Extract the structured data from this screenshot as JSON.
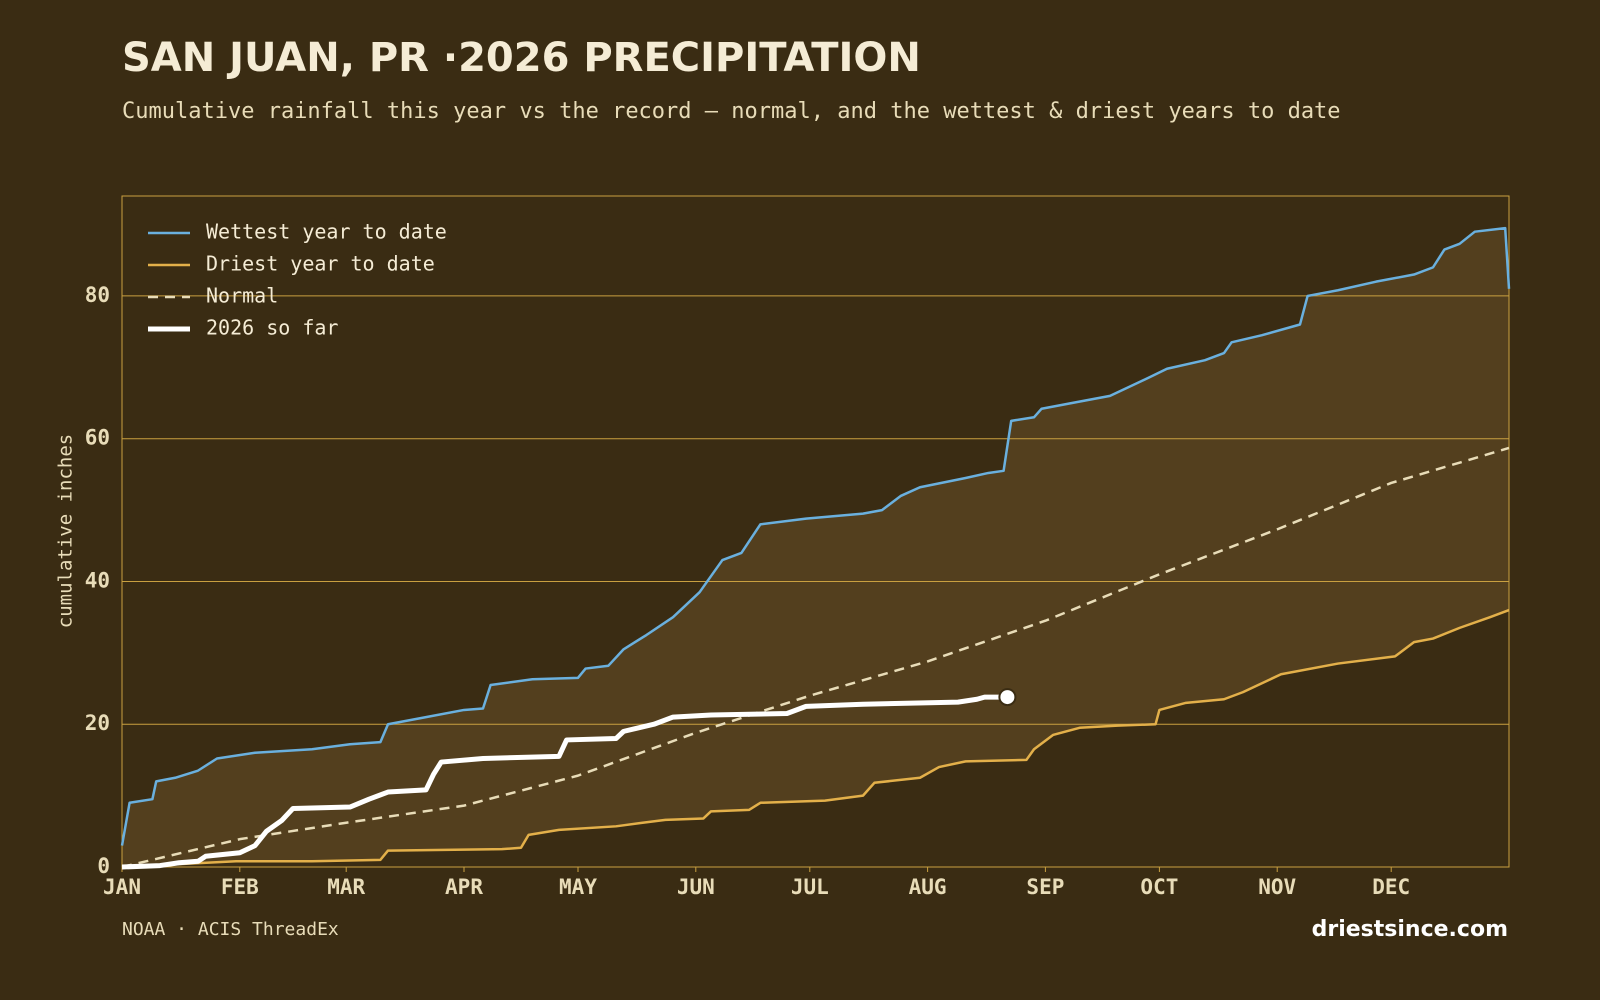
{
  "chart_data": {
    "type": "line",
    "title": "SAN JUAN, PR ·2026 PRECIPITATION",
    "subtitle": "Cumulative rainfall this year vs the record — normal, and the wettest & driest years to date",
    "y_label": "cumulative inches",
    "source": "NOAA · ACIS ThreadEx",
    "brand": "driestsince.com",
    "xlim": [
      0,
      365
    ],
    "ylim": [
      0,
      94
    ],
    "xticks": [
      {
        "value": 0,
        "label": "JAN"
      },
      {
        "value": 31,
        "label": "FEB"
      },
      {
        "value": 59,
        "label": "MAR"
      },
      {
        "value": 90,
        "label": "APR"
      },
      {
        "value": 120,
        "label": "MAY"
      },
      {
        "value": 151,
        "label": "JUN"
      },
      {
        "value": 181,
        "label": "JUL"
      },
      {
        "value": 212,
        "label": "AUG"
      },
      {
        "value": 243,
        "label": "SEP"
      },
      {
        "value": 273,
        "label": "OCT"
      },
      {
        "value": 304,
        "label": "NOV"
      },
      {
        "value": 334,
        "label": "DEC"
      }
    ],
    "yticks": [
      0,
      20,
      40,
      60,
      80
    ],
    "grid": true,
    "legend": "upper left",
    "series": [
      {
        "name": "Wettest year to date",
        "color": "#6ab0de",
        "style": "solid",
        "x": [
          0,
          2,
          8,
          9,
          14,
          20,
          25,
          35,
          50,
          60,
          68,
          70,
          80,
          90,
          95,
          97,
          108,
          120,
          122,
          128,
          132,
          138,
          145,
          152,
          158,
          163,
          168,
          180,
          195,
          200,
          205,
          210,
          222,
          228,
          232,
          234,
          240,
          242,
          250,
          260,
          270,
          275,
          285,
          290,
          292,
          300,
          310,
          312,
          320,
          330,
          340,
          345,
          348,
          352,
          356,
          364,
          365
        ],
        "values": [
          3,
          9,
          9.5,
          12,
          12.5,
          13.5,
          15.2,
          16,
          16.5,
          17.2,
          17.5,
          20,
          21,
          22,
          22.2,
          25.5,
          26.3,
          26.5,
          27.8,
          28.2,
          30.5,
          32.5,
          35,
          38.5,
          43,
          44,
          48,
          48.8,
          49.5,
          50,
          52,
          53.2,
          54.5,
          55.2,
          55.5,
          62.5,
          63,
          64.2,
          65,
          66,
          68.5,
          69.8,
          71,
          72,
          73.5,
          74.5,
          76,
          80,
          80.8,
          82,
          83,
          84,
          86.5,
          87.3,
          89,
          89.5,
          81
        ]
      },
      {
        "name": "Driest year to date",
        "color": "#e3b04a",
        "style": "solid",
        "x": [
          0,
          30,
          50,
          68,
          70,
          100,
          105,
          107,
          115,
          130,
          137,
          143,
          153,
          155,
          165,
          168,
          185,
          195,
          198,
          210,
          215,
          222,
          238,
          240,
          245,
          252,
          262,
          272,
          273,
          280,
          290,
          295,
          305,
          320,
          335,
          340,
          345,
          352,
          360,
          365
        ],
        "values": [
          0,
          0.8,
          0.8,
          1,
          2.3,
          2.5,
          2.7,
          4.5,
          5.2,
          5.7,
          6.2,
          6.6,
          6.8,
          7.8,
          8,
          9,
          9.3,
          10,
          11.8,
          12.5,
          14,
          14.8,
          15,
          16.5,
          18.5,
          19.5,
          19.8,
          20,
          22,
          23,
          23.5,
          24.5,
          27,
          28.5,
          29.5,
          31.5,
          32,
          33.5,
          35,
          36
        ]
      },
      {
        "name": "Normal",
        "color": "#e8dcb8",
        "style": "dashed",
        "x": [
          0,
          31,
          59,
          90,
          120,
          151,
          181,
          212,
          243,
          273,
          304,
          334,
          365
        ],
        "values": [
          0,
          3.9,
          6.2,
          8.6,
          12.8,
          18.8,
          24,
          28.8,
          34.5,
          41,
          47.3,
          53.8,
          58.7
        ]
      },
      {
        "name": "2026 so far",
        "color": "#ffffff",
        "style": "bold",
        "x": [
          0,
          10,
          15,
          20,
          22,
          31,
          35,
          38,
          42,
          45,
          60,
          65,
          70,
          80,
          82,
          84,
          95,
          115,
          117,
          130,
          132,
          140,
          145,
          155,
          175,
          180,
          195,
          220,
          225,
          227,
          233
        ],
        "values": [
          0,
          0.2,
          0.6,
          0.8,
          1.5,
          2,
          3,
          5,
          6.5,
          8.2,
          8.4,
          9.5,
          10.5,
          10.8,
          13,
          14.7,
          15.2,
          15.5,
          17.8,
          18,
          19,
          20,
          21,
          21.3,
          21.5,
          22.5,
          22.8,
          23.1,
          23.5,
          23.8,
          23.8
        ]
      }
    ]
  }
}
